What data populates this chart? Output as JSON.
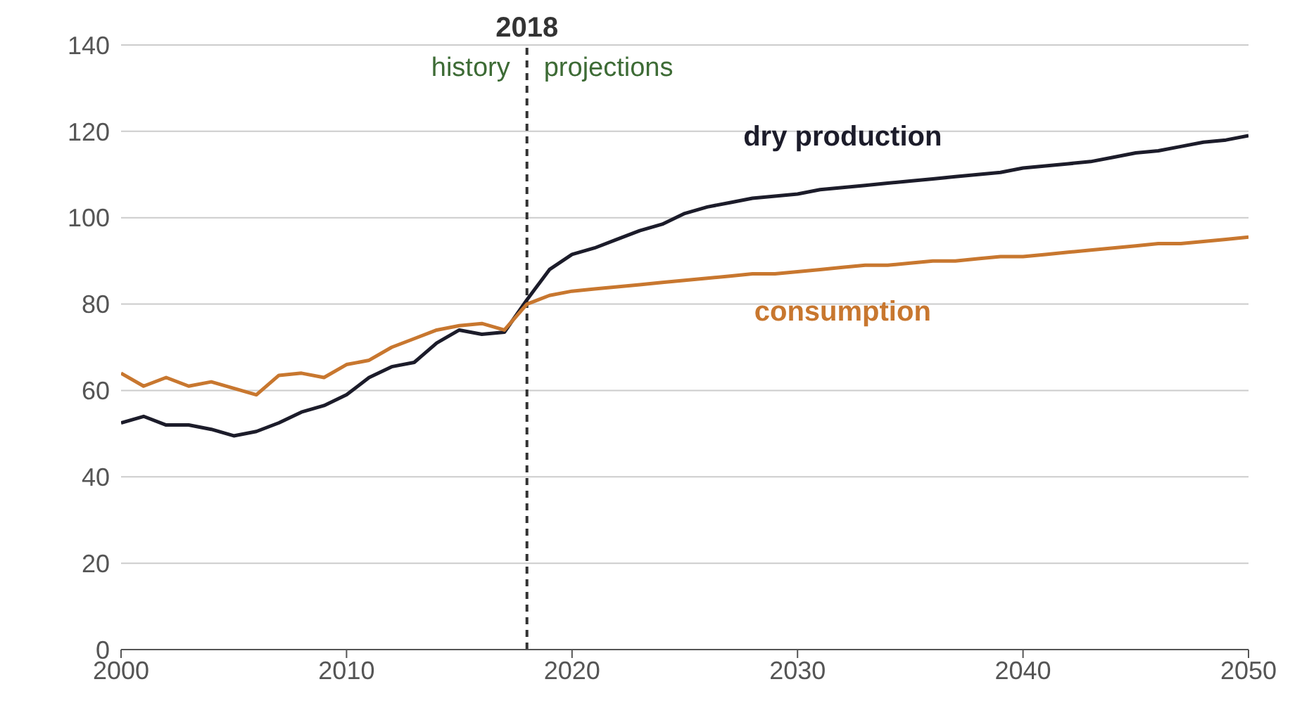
{
  "chart_data": {
    "type": "line",
    "x": [
      2000,
      2001,
      2002,
      2003,
      2004,
      2005,
      2006,
      2007,
      2008,
      2009,
      2010,
      2011,
      2012,
      2013,
      2014,
      2015,
      2016,
      2017,
      2018,
      2019,
      2020,
      2021,
      2022,
      2023,
      2024,
      2025,
      2026,
      2027,
      2028,
      2029,
      2030,
      2031,
      2032,
      2033,
      2034,
      2035,
      2036,
      2037,
      2038,
      2039,
      2040,
      2041,
      2042,
      2043,
      2044,
      2045,
      2046,
      2047,
      2048,
      2049,
      2050
    ],
    "series": [
      {
        "name": "dry production",
        "color": "#1c1c2a",
        "values": [
          52.5,
          54,
          52,
          52,
          51,
          49.5,
          50.5,
          52.5,
          55,
          56.5,
          59,
          63,
          65.5,
          66.5,
          71,
          74,
          73,
          73.5,
          81,
          88,
          91.5,
          93,
          95,
          97,
          98.5,
          101,
          102.5,
          103.5,
          104.5,
          105,
          105.5,
          106.5,
          107,
          107.5,
          108,
          108.5,
          109,
          109.5,
          110,
          110.5,
          111.5,
          112,
          112.5,
          113,
          114,
          115,
          115.5,
          116.5,
          117.5,
          118,
          119
        ]
      },
      {
        "name": "consumption",
        "color": "#c8772f",
        "values": [
          64,
          61,
          63,
          61,
          62,
          60.5,
          59,
          63.5,
          64,
          63,
          66,
          67,
          70,
          72,
          74,
          75,
          75.5,
          74,
          80,
          82,
          83,
          83.5,
          84,
          84.5,
          85,
          85.5,
          86,
          86.5,
          87,
          87,
          87.5,
          88,
          88.5,
          89,
          89,
          89.5,
          90,
          90,
          90.5,
          91,
          91,
          91.5,
          92,
          92.5,
          93,
          93.5,
          94,
          94,
          94.5,
          95,
          95.5
        ]
      }
    ],
    "xlim": [
      2000,
      2050
    ],
    "xticks": [
      2000,
      2010,
      2020,
      2030,
      2040,
      2050
    ],
    "ylim": [
      0,
      140
    ],
    "yticks": [
      0,
      20,
      40,
      60,
      80,
      100,
      120,
      140
    ],
    "grid": "y",
    "marker": "none",
    "line_style": "solid",
    "ref_lines": [
      {
        "axis": "x",
        "value": 2018,
        "label": "2018",
        "color": "#333333",
        "line_style": "dashed"
      }
    ],
    "annotations": [
      "history",
      "projections"
    ]
  }
}
